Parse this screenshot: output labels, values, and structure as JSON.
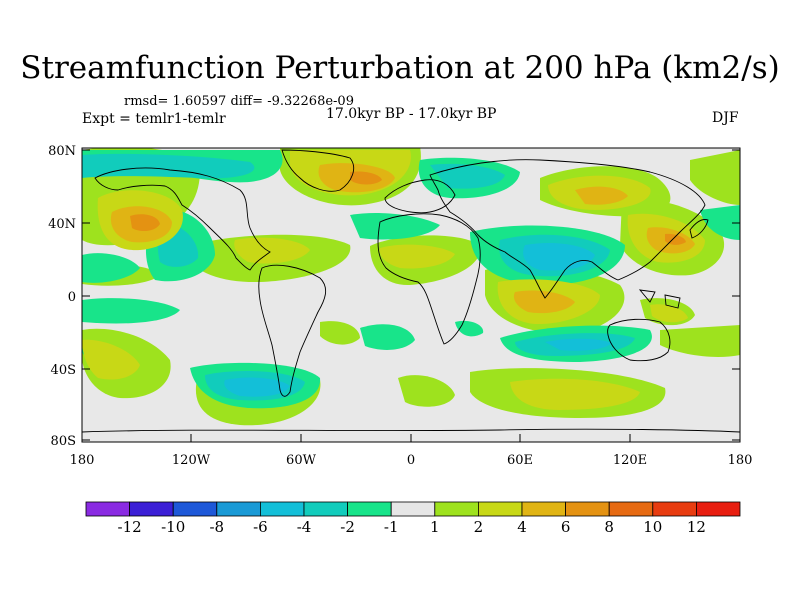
{
  "title": "Streamfunction Perturbation at 200 hPa (km2/s)",
  "stats": "rmsd= 1.60597 diff= -9.32268e-09",
  "experiment": "Expt = temlr1-temlr",
  "period": "17.0kyr BP - 17.0kyr BP",
  "season": "DJF",
  "axes": {
    "lat_labels": [
      "80N",
      "40N",
      "0",
      "40S",
      "80S"
    ],
    "lon_labels": [
      "180",
      "120W",
      "60W",
      "0",
      "60E",
      "120E",
      "180"
    ]
  },
  "colorbar": {
    "labels": [
      "-12",
      "-10",
      "-8",
      "-6",
      "-4",
      "-2",
      "-1",
      "1",
      "2",
      "4",
      "6",
      "8",
      "10",
      "12"
    ],
    "colors": [
      "#8a2be2",
      "#3c1fd6",
      "#1e58d8",
      "#1a9ad6",
      "#13bfd8",
      "#11ccbc",
      "#18e48a",
      "#e6e6e6",
      "#9ee21e",
      "#c8d816",
      "#e0b414",
      "#e49212",
      "#e66a12",
      "#e83c10",
      "#e81e10"
    ]
  }
}
